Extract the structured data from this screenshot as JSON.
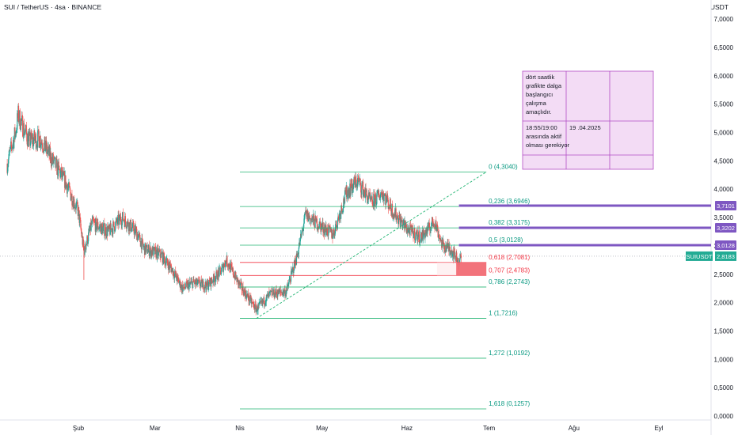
{
  "header": {
    "symbol_title": "SUI / TetherUS · 4sa · BINANCE",
    "currency": "USDT"
  },
  "colors": {
    "up": "#26a69a",
    "down": "#ef5350",
    "fib_line": "#22b573",
    "fib_text": "#089981",
    "fib_red": "#f23645",
    "level": "#7e57c2",
    "last_price": "#22ab94",
    "zone_fill": "#f05d66",
    "note_fill": "#f3dcf5",
    "note_border": "#b24dc4",
    "trend": "#22b573"
  },
  "chart_data": {
    "type": "candlestick",
    "symbol": "SUI/USDT",
    "interval": "4h",
    "exchange": "BINANCE",
    "ylim": [
      0,
      7
    ],
    "y_ticks": [
      "7,0000",
      "6,5000",
      "6,0000",
      "5,5000",
      "5,0000",
      "4,5000",
      "4,0000",
      "3,5000",
      "3,0000",
      "2,5000",
      "2,0000",
      "1,5000",
      "1,0000",
      "0,5000",
      "0,0000"
    ],
    "y_tick_values": [
      7,
      6.5,
      6,
      5.5,
      5,
      4.5,
      4,
      3.5,
      3,
      2.5,
      2,
      1.5,
      1,
      0.5,
      0
    ],
    "x_labels": [
      {
        "label": "Şub",
        "date": "2025-02-01"
      },
      {
        "label": "Mar",
        "date": "2025-03-01"
      },
      {
        "label": "Nis",
        "date": "2025-04-01"
      },
      {
        "label": "May",
        "date": "2025-05-01"
      },
      {
        "label": "Haz",
        "date": "2025-06-01"
      },
      {
        "label": "Tem",
        "date": "2025-07-01"
      },
      {
        "label": "Ağu",
        "date": "2025-08-01"
      },
      {
        "label": "Eyl",
        "date": "2025-09-01"
      }
    ],
    "x_range": [
      "2025-01-06",
      "2025-09-20"
    ],
    "price_path": [
      {
        "date": "2025-01-06",
        "close": 4.45
      },
      {
        "date": "2025-01-09",
        "close": 5.0
      },
      {
        "date": "2025-01-10",
        "close": 5.3
      },
      {
        "date": "2025-01-14",
        "close": 4.85
      },
      {
        "date": "2025-01-18",
        "close": 4.9
      },
      {
        "date": "2025-01-22",
        "close": 4.55
      },
      {
        "date": "2025-01-27",
        "close": 4.15
      },
      {
        "date": "2025-02-01",
        "close": 3.6
      },
      {
        "date": "2025-02-03",
        "close": 2.9
      },
      {
        "date": "2025-02-06",
        "close": 3.4
      },
      {
        "date": "2025-02-12",
        "close": 3.25
      },
      {
        "date": "2025-02-17",
        "close": 3.5
      },
      {
        "date": "2025-02-22",
        "close": 3.25
      },
      {
        "date": "2025-02-25",
        "close": 2.95
      },
      {
        "date": "2025-03-03",
        "close": 2.85
      },
      {
        "date": "2025-03-07",
        "close": 2.6
      },
      {
        "date": "2025-03-11",
        "close": 2.25
      },
      {
        "date": "2025-03-15",
        "close": 2.35
      },
      {
        "date": "2025-03-20",
        "close": 2.3
      },
      {
        "date": "2025-03-25",
        "close": 2.55
      },
      {
        "date": "2025-03-27",
        "close": 2.75
      },
      {
        "date": "2025-04-01",
        "close": 2.3
      },
      {
        "date": "2025-04-07",
        "close": 1.88
      },
      {
        "date": "2025-04-12",
        "close": 2.15
      },
      {
        "date": "2025-04-18",
        "close": 2.2
      },
      {
        "date": "2025-04-22",
        "close": 2.85
      },
      {
        "date": "2025-04-25",
        "close": 3.55
      },
      {
        "date": "2025-04-29",
        "close": 3.4
      },
      {
        "date": "2025-05-05",
        "close": 3.2
      },
      {
        "date": "2025-05-10",
        "close": 3.95
      },
      {
        "date": "2025-05-14",
        "close": 4.15
      },
      {
        "date": "2025-05-19",
        "close": 3.75
      },
      {
        "date": "2025-05-23",
        "close": 3.95
      },
      {
        "date": "2025-05-27",
        "close": 3.6
      },
      {
        "date": "2025-06-01",
        "close": 3.3
      },
      {
        "date": "2025-06-06",
        "close": 3.15
      },
      {
        "date": "2025-06-09",
        "close": 3.3
      },
      {
        "date": "2025-06-11",
        "close": 3.45
      },
      {
        "date": "2025-06-14",
        "close": 3.0
      },
      {
        "date": "2025-06-17",
        "close": 2.95
      },
      {
        "date": "2025-06-20",
        "close": 2.72
      },
      {
        "date": "2025-06-21",
        "close": 2.8183
      }
    ],
    "spikes": [
      {
        "date": "2025-02-03",
        "low": 2.4
      }
    ],
    "fibonacci": {
      "start_date": "2025-04-01",
      "end_date": "2025-06-30",
      "levels": [
        {
          "ratio": "0",
          "price": "4,3040",
          "value": 4.304
        },
        {
          "ratio": "0,236",
          "price": "3,6946",
          "value": 3.6946
        },
        {
          "ratio": "0,382",
          "price": "3,3175",
          "value": 3.3175
        },
        {
          "ratio": "0,5",
          "price": "3,0128",
          "value": 3.0128
        },
        {
          "ratio": "0,618",
          "price": "2,7081",
          "value": 2.7081
        },
        {
          "ratio": "0,707",
          "price": "2,4783",
          "value": 2.4783
        },
        {
          "ratio": "0,786",
          "price": "2,2743",
          "value": 2.2743
        },
        {
          "ratio": "1",
          "price": "1,7216",
          "value": 1.7216
        },
        {
          "ratio": "1,272",
          "price": "1,0192",
          "value": 1.0192
        },
        {
          "ratio": "1,618",
          "price": "0,1257",
          "value": 0.1257
        }
      ],
      "red_levels": [
        "0,618",
        "0,707"
      ]
    },
    "trendline": {
      "from": {
        "date": "2025-04-07",
        "value": 1.72
      },
      "to": {
        "date": "2025-06-30",
        "value": 4.304
      }
    },
    "zone": {
      "start_date": "2025-06-12",
      "end_date": "2025-06-30",
      "top": 2.7081,
      "bottom": 2.4783,
      "solid_start_date": "2025-06-19"
    },
    "horizontal_levels": [
      {
        "value": 3.7101,
        "label": "3,7101",
        "start_date": "2025-06-20"
      },
      {
        "value": 3.3202,
        "label": "3,3202",
        "start_date": "2025-06-20"
      },
      {
        "value": 3.0128,
        "label": "3,0128",
        "start_date": "2025-06-20"
      }
    ],
    "last_price": {
      "value": 2.8183,
      "label": "2,8183",
      "symbol": "SUIUSDT"
    }
  },
  "note": {
    "cell_1": [
      "dört saatlik",
      "grafikte dalga",
      "başlangıcı",
      "çalışma",
      "amaçlıdır."
    ],
    "cell_2": [
      "18:55/19:00",
      "arasında aktif",
      "olması gerekiyor"
    ],
    "cell_3": "19 .04.2025"
  }
}
